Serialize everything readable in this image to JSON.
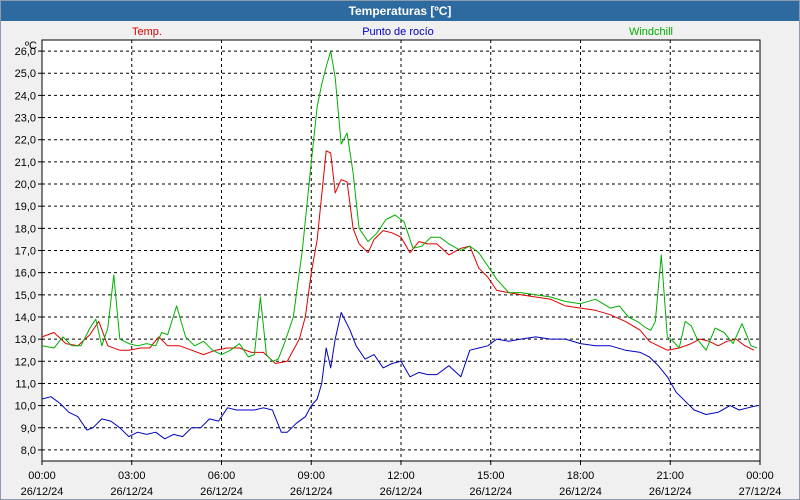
{
  "window": {
    "title": "Temperaturas [ºC]"
  },
  "chart_data": {
    "type": "line",
    "title": "Temperaturas [ºC]",
    "unit_label": "ºC",
    "ylim": [
      7.5,
      26.5
    ],
    "yticks": [
      8.0,
      9.0,
      10.0,
      11.0,
      12.0,
      13.0,
      14.0,
      15.0,
      16.0,
      17.0,
      18.0,
      19.0,
      20.0,
      21.0,
      22.0,
      23.0,
      24.0,
      25.0,
      26.0
    ],
    "ytick_labels": [
      "8,0",
      "9,0",
      "10,0",
      "11,0",
      "12,0",
      "13,0",
      "14,0",
      "15,0",
      "16,0",
      "17,0",
      "18,0",
      "19,0",
      "20,0",
      "21,0",
      "22,0",
      "23,0",
      "24,0",
      "25,0",
      "26,0"
    ],
    "xlim_hours": [
      0,
      24
    ],
    "xticks": [
      {
        "time": "00:00",
        "date": "26/12/24"
      },
      {
        "time": "03:00",
        "date": "26/12/24"
      },
      {
        "time": "06:00",
        "date": "26/12/24"
      },
      {
        "time": "09:00",
        "date": "26/12/24"
      },
      {
        "time": "12:00",
        "date": "26/12/24"
      },
      {
        "time": "15:00",
        "date": "26/12/24"
      },
      {
        "time": "18:00",
        "date": "26/12/24"
      },
      {
        "time": "21:00",
        "date": "26/12/24"
      },
      {
        "time": "00:00",
        "date": "27/12/24"
      }
    ],
    "grid": true,
    "legend_position": "top",
    "series": [
      {
        "name": "Temp.",
        "color": "#e00000",
        "x": [
          0.0,
          0.4,
          0.8,
          1.2,
          1.6,
          1.9,
          2.2,
          2.6,
          2.9,
          3.3,
          3.6,
          3.9,
          4.2,
          4.6,
          5.0,
          5.4,
          5.8,
          6.2,
          6.6,
          7.0,
          7.4,
          7.8,
          8.2,
          8.6,
          8.8,
          9.0,
          9.2,
          9.35,
          9.5,
          9.65,
          9.8,
          10.0,
          10.2,
          10.4,
          10.6,
          10.9,
          11.1,
          11.4,
          11.7,
          12.0,
          12.3,
          12.6,
          12.9,
          13.2,
          13.6,
          14.0,
          14.3,
          14.6,
          14.9,
          15.2,
          15.6,
          16.0,
          16.5,
          17.0,
          17.5,
          18.0,
          18.5,
          19.0,
          19.5,
          20.0,
          20.3,
          20.6,
          20.9,
          21.3,
          21.7,
          22.0,
          22.3,
          22.6,
          22.9,
          23.2,
          23.5,
          23.8
        ],
        "values": [
          13.1,
          13.3,
          12.8,
          12.7,
          13.2,
          13.8,
          12.7,
          12.5,
          12.5,
          12.6,
          12.6,
          13.1,
          12.7,
          12.7,
          12.5,
          12.3,
          12.5,
          12.6,
          12.6,
          12.4,
          12.4,
          11.9,
          12.0,
          13.0,
          14.0,
          16.0,
          17.5,
          19.5,
          21.5,
          21.4,
          19.6,
          20.2,
          20.1,
          18.0,
          17.3,
          16.9,
          17.5,
          17.9,
          17.8,
          17.6,
          16.9,
          17.4,
          17.3,
          17.3,
          16.8,
          17.1,
          17.2,
          16.2,
          15.8,
          15.2,
          15.1,
          15.0,
          14.9,
          14.8,
          14.5,
          14.4,
          14.3,
          14.1,
          13.8,
          13.4,
          12.9,
          12.7,
          12.5,
          12.6,
          12.8,
          13.0,
          12.9,
          12.7,
          12.9,
          13.0,
          12.7,
          12.5
        ]
      },
      {
        "name": "Punto de rocío",
        "color": "#0000c0",
        "x": [
          0.0,
          0.3,
          0.6,
          0.9,
          1.2,
          1.5,
          1.7,
          2.0,
          2.3,
          2.6,
          2.9,
          3.2,
          3.5,
          3.8,
          4.1,
          4.4,
          4.7,
          5.0,
          5.3,
          5.6,
          5.9,
          6.2,
          6.5,
          6.8,
          7.1,
          7.4,
          7.7,
          8.0,
          8.2,
          8.5,
          8.8,
          9.0,
          9.2,
          9.35,
          9.5,
          9.65,
          9.8,
          10.0,
          10.3,
          10.5,
          10.8,
          11.1,
          11.4,
          11.7,
          12.0,
          12.3,
          12.6,
          12.9,
          13.2,
          13.6,
          14.0,
          14.3,
          14.6,
          14.9,
          15.2,
          15.6,
          16.0,
          16.5,
          17.0,
          17.5,
          18.0,
          18.5,
          19.0,
          19.5,
          20.0,
          20.3,
          20.6,
          20.9,
          21.2,
          21.5,
          21.8,
          22.2,
          22.6,
          23.0,
          23.3,
          23.6,
          23.9
        ],
        "values": [
          10.3,
          10.4,
          10.1,
          9.7,
          9.5,
          8.9,
          9.0,
          9.4,
          9.3,
          9.0,
          8.6,
          8.8,
          8.7,
          8.8,
          8.5,
          8.7,
          8.6,
          9.0,
          9.0,
          9.4,
          9.3,
          9.9,
          9.8,
          9.8,
          9.8,
          9.9,
          9.8,
          8.8,
          8.8,
          9.2,
          9.5,
          10.0,
          10.3,
          11.0,
          12.6,
          11.7,
          13.0,
          14.2,
          13.4,
          12.7,
          12.1,
          12.3,
          11.7,
          11.9,
          12.0,
          11.3,
          11.5,
          11.4,
          11.4,
          11.8,
          11.3,
          12.5,
          12.6,
          12.7,
          13.0,
          12.9,
          13.0,
          13.1,
          13.0,
          13.0,
          12.8,
          12.7,
          12.7,
          12.5,
          12.4,
          12.2,
          11.8,
          11.3,
          10.6,
          10.2,
          9.8,
          9.6,
          9.7,
          10.0,
          9.8,
          9.9,
          10.0
        ]
      },
      {
        "name": "Windchill",
        "color": "#00b000",
        "x": [
          0.0,
          0.4,
          0.7,
          1.0,
          1.3,
          1.6,
          1.8,
          2.0,
          2.2,
          2.4,
          2.6,
          2.9,
          3.2,
          3.5,
          3.8,
          4.0,
          4.2,
          4.5,
          4.8,
          5.1,
          5.4,
          5.7,
          6.0,
          6.3,
          6.6,
          6.9,
          7.1,
          7.3,
          7.5,
          7.7,
          7.9,
          8.1,
          8.4,
          8.7,
          9.0,
          9.2,
          9.35,
          9.5,
          9.65,
          9.8,
          10.0,
          10.2,
          10.4,
          10.6,
          10.9,
          11.2,
          11.5,
          11.8,
          12.1,
          12.4,
          12.7,
          13.0,
          13.3,
          13.6,
          14.0,
          14.3,
          14.6,
          14.9,
          15.2,
          15.6,
          16.0,
          16.5,
          17.0,
          17.5,
          18.0,
          18.5,
          19.0,
          19.3,
          19.6,
          19.9,
          20.2,
          20.35,
          20.5,
          20.7,
          20.9,
          21.1,
          21.3,
          21.5,
          21.7,
          21.9,
          22.2,
          22.5,
          22.8,
          23.1,
          23.4,
          23.7,
          23.9
        ],
        "values": [
          12.7,
          12.6,
          13.1,
          12.7,
          12.7,
          13.5,
          13.9,
          12.7,
          13.5,
          15.9,
          13.0,
          12.8,
          12.7,
          12.8,
          12.7,
          13.3,
          13.2,
          14.5,
          13.1,
          12.7,
          12.9,
          12.5,
          12.3,
          12.5,
          12.8,
          12.2,
          12.3,
          14.9,
          12.3,
          12.0,
          12.1,
          12.8,
          14.0,
          17.0,
          21.0,
          23.5,
          24.5,
          25.3,
          26.0,
          24.8,
          21.8,
          22.3,
          20.5,
          18.0,
          17.4,
          17.8,
          18.4,
          18.6,
          18.3,
          17.1,
          17.2,
          17.6,
          17.6,
          17.3,
          17.0,
          17.2,
          16.9,
          16.3,
          15.7,
          15.1,
          15.1,
          15.0,
          14.9,
          14.7,
          14.6,
          14.8,
          14.4,
          14.5,
          14.0,
          13.8,
          13.5,
          13.4,
          13.8,
          16.8,
          13.1,
          12.9,
          12.6,
          13.8,
          13.6,
          13.0,
          12.5,
          13.5,
          13.3,
          12.8,
          13.7,
          12.7,
          12.6
        ]
      }
    ]
  }
}
